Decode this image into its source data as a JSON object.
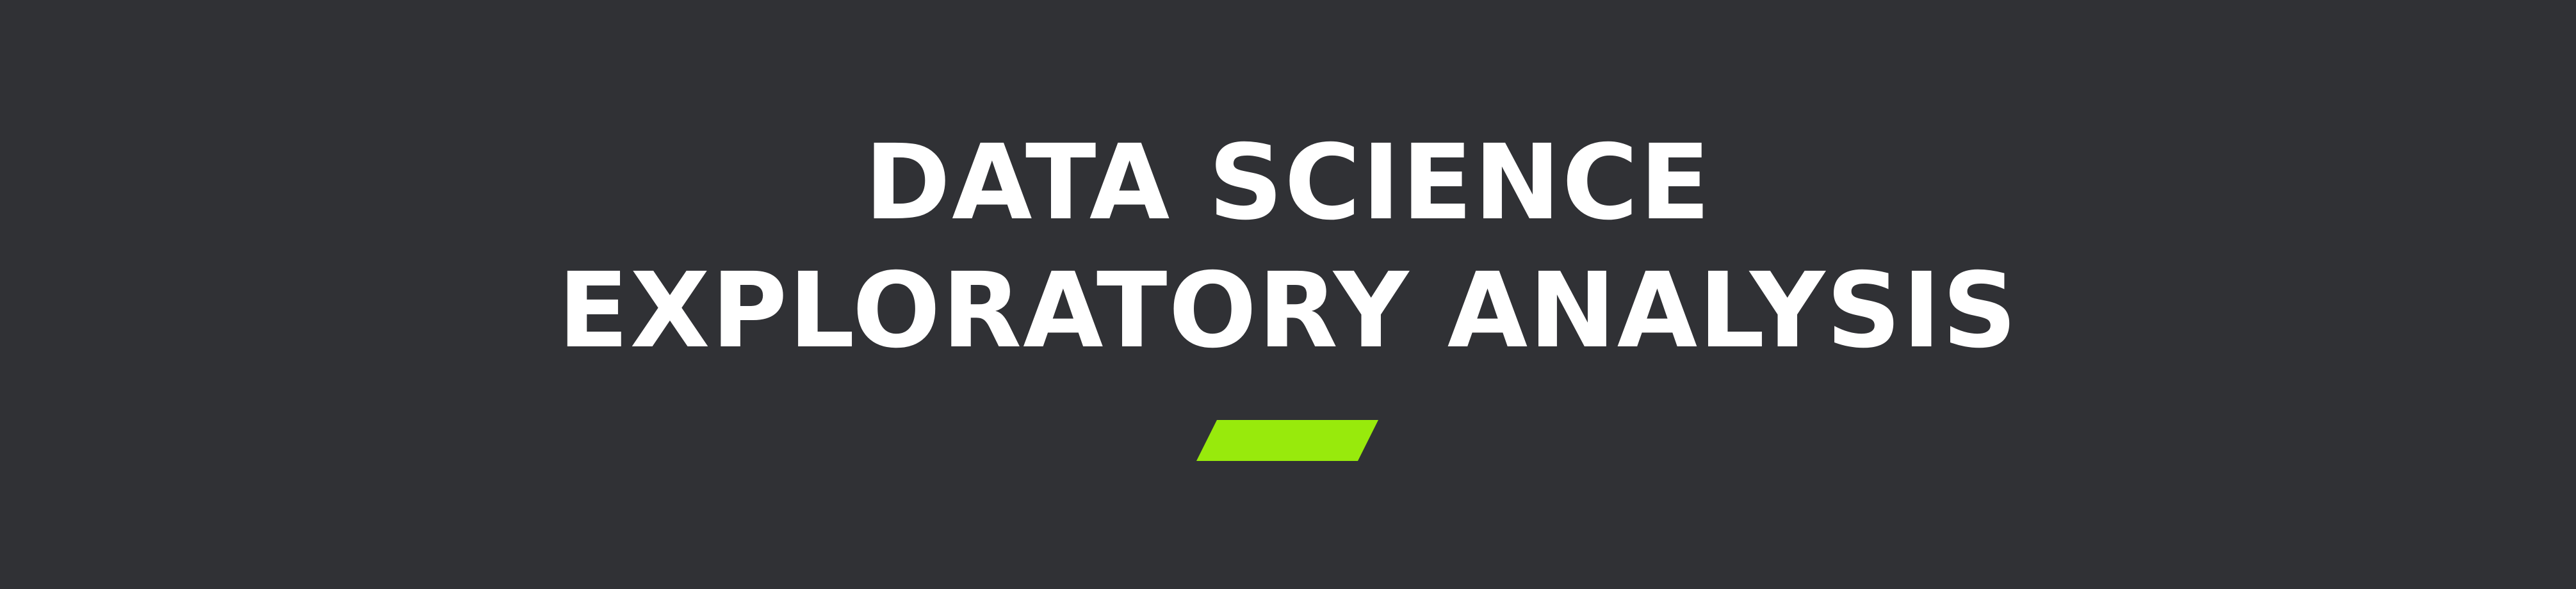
{
  "banner": {
    "title_line_1": "DATA SCIENCE",
    "title_line_2": "EXPLORATORY ANALYSIS",
    "accent_color": "#98ea0c",
    "background_color": "#303135",
    "text_color": "#ffffff"
  }
}
